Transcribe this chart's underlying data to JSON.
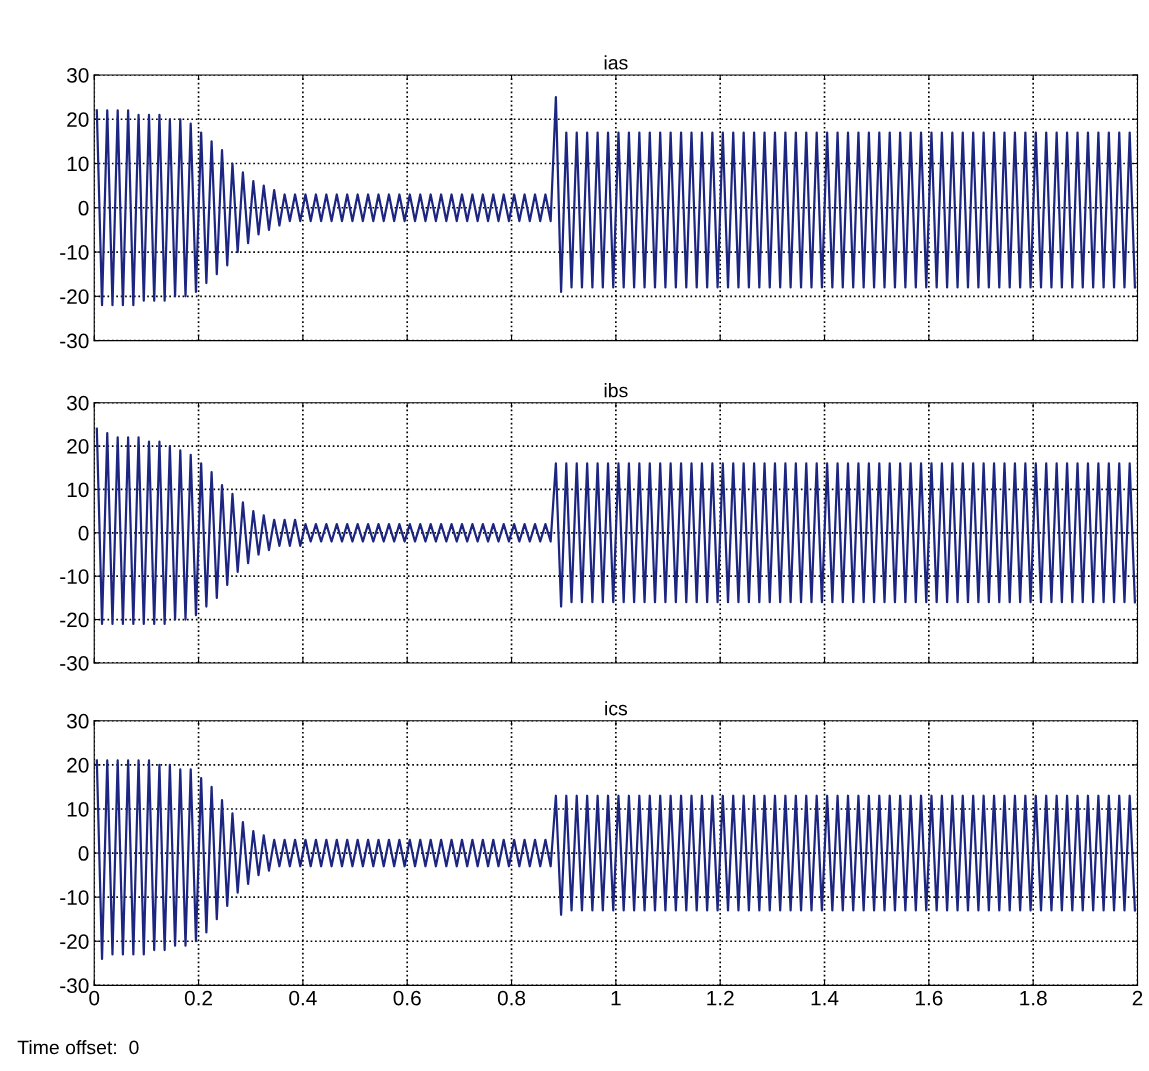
{
  "chart_data": [
    {
      "type": "line",
      "title": "ias",
      "xlim": [
        0,
        2
      ],
      "ylim": [
        -30,
        30
      ],
      "xticks": [
        0,
        0.2,
        0.4,
        0.6,
        0.8,
        1,
        1.2,
        1.4,
        1.6,
        1.8,
        2
      ],
      "yticks": [
        -30,
        -20,
        -10,
        0,
        10,
        20,
        30
      ],
      "grid": true,
      "line_style": "solid",
      "tick_labels": "y",
      "x": [
        0.005,
        0.015,
        0.025,
        0.035,
        0.045,
        0.055,
        0.065,
        0.075,
        0.085,
        0.095,
        0.105,
        0.115,
        0.125,
        0.135,
        0.145,
        0.155,
        0.165,
        0.175,
        0.185,
        0.195,
        0.205,
        0.215,
        0.225,
        0.235,
        0.245,
        0.255,
        0.265,
        0.275,
        0.285,
        0.295,
        0.305,
        0.315,
        0.325,
        0.335,
        0.345,
        0.355,
        0.365,
        0.375,
        0.385,
        0.395,
        0.405,
        0.415,
        0.425,
        0.435,
        0.445,
        0.455,
        0.465,
        0.475,
        0.485,
        0.495,
        0.505,
        0.515,
        0.525,
        0.535,
        0.545,
        0.555,
        0.565,
        0.575,
        0.585,
        0.595,
        0.605,
        0.615,
        0.625,
        0.635,
        0.645,
        0.655,
        0.665,
        0.675,
        0.685,
        0.695,
        0.705,
        0.715,
        0.725,
        0.735,
        0.745,
        0.755,
        0.765,
        0.775,
        0.785,
        0.795,
        0.805,
        0.815,
        0.825,
        0.835,
        0.845,
        0.855,
        0.865,
        0.875,
        0.885,
        0.895,
        0.905,
        0.915,
        0.925,
        0.935,
        0.945,
        0.955,
        0.965,
        0.975,
        0.985,
        0.995,
        1.005,
        1.015,
        1.025,
        1.035,
        1.045,
        1.055,
        1.065,
        1.075,
        1.085,
        1.095,
        1.105,
        1.115,
        1.125,
        1.135,
        1.145,
        1.155,
        1.165,
        1.175,
        1.185,
        1.195,
        1.205,
        1.215,
        1.225,
        1.235,
        1.245,
        1.255,
        1.265,
        1.275,
        1.285,
        1.295,
        1.305,
        1.315,
        1.325,
        1.335,
        1.345,
        1.355,
        1.365,
        1.375,
        1.385,
        1.395,
        1.405,
        1.415,
        1.425,
        1.435,
        1.445,
        1.455,
        1.465,
        1.475,
        1.485,
        1.495,
        1.505,
        1.515,
        1.525,
        1.535,
        1.545,
        1.555,
        1.565,
        1.575,
        1.585,
        1.595,
        1.605,
        1.615,
        1.625,
        1.635,
        1.645,
        1.655,
        1.665,
        1.675,
        1.685,
        1.695,
        1.705,
        1.715,
        1.725,
        1.735,
        1.745,
        1.755,
        1.765,
        1.775,
        1.785,
        1.795,
        1.805,
        1.815,
        1.825,
        1.835,
        1.845,
        1.855,
        1.865,
        1.875,
        1.885,
        1.895,
        1.905,
        1.915,
        1.925,
        1.935,
        1.945,
        1.955,
        1.965,
        1.975,
        1.985,
        1.995
      ],
      "series": [
        {
          "color": "#1c2580",
          "values": [
            22,
            -22,
            22,
            -22,
            22,
            -22,
            22,
            -22,
            21,
            -21,
            21,
            -21,
            21,
            -21,
            20,
            -20,
            20,
            -20,
            19,
            -19,
            17,
            -17,
            15,
            -15,
            13,
            -13,
            10,
            -10,
            8,
            -8,
            6,
            -6,
            5,
            -5,
            4,
            -4,
            3,
            -3,
            3,
            -3,
            3,
            -3,
            3,
            -3,
            3,
            -3,
            3,
            -3,
            3,
            -3,
            3,
            -3,
            3,
            -3,
            3,
            -3,
            3,
            -3,
            3,
            -3,
            3,
            -3,
            3,
            -3,
            3,
            -3,
            3,
            -3,
            3,
            -3,
            3,
            -3,
            3,
            -3,
            3,
            -3,
            3,
            -3,
            3,
            -3,
            3,
            -3,
            3,
            -3,
            3,
            -3,
            3,
            -3,
            25,
            -19,
            17,
            -18,
            17,
            -18,
            17,
            -18,
            17,
            -18,
            17,
            -18,
            17,
            -18,
            17,
            -18,
            17,
            -18,
            17,
            -18,
            17,
            -18,
            17,
            -18,
            17,
            -18,
            17,
            -18,
            17,
            -18,
            17,
            -18,
            17,
            -18,
            17,
            -18,
            17,
            -18,
            17,
            -18,
            17,
            -18,
            17,
            -18,
            17,
            -18,
            17,
            -18,
            17,
            -18,
            17,
            -18,
            17,
            -18,
            17,
            -18,
            17,
            -18,
            17,
            -18,
            17,
            -18,
            17,
            -18,
            17,
            -18,
            17,
            -18,
            17,
            -18,
            17,
            -18,
            17,
            -18,
            17,
            -18,
            17,
            -18,
            17,
            -18,
            17,
            -18,
            17,
            -18,
            17,
            -18,
            17,
            -18,
            17,
            -18,
            17,
            -18,
            17,
            -18,
            17,
            -18,
            17,
            -18,
            17,
            -18,
            17,
            -18,
            17,
            -18,
            17,
            -18,
            17,
            -18,
            17,
            -18,
            17,
            -18
          ]
        }
      ]
    },
    {
      "type": "line",
      "title": "ibs",
      "xlim": [
        0,
        2
      ],
      "ylim": [
        -30,
        30
      ],
      "xticks": [
        0,
        0.2,
        0.4,
        0.6,
        0.8,
        1,
        1.2,
        1.4,
        1.6,
        1.8,
        2
      ],
      "yticks": [
        -30,
        -20,
        -10,
        0,
        10,
        20,
        30
      ],
      "grid": true,
      "line_style": "solid",
      "tick_labels": "y",
      "x": [
        0.005,
        0.015,
        0.025,
        0.035,
        0.045,
        0.055,
        0.065,
        0.075,
        0.085,
        0.095,
        0.105,
        0.115,
        0.125,
        0.135,
        0.145,
        0.155,
        0.165,
        0.175,
        0.185,
        0.195,
        0.205,
        0.215,
        0.225,
        0.235,
        0.245,
        0.255,
        0.265,
        0.275,
        0.285,
        0.295,
        0.305,
        0.315,
        0.325,
        0.335,
        0.345,
        0.355,
        0.365,
        0.375,
        0.385,
        0.395,
        0.405,
        0.415,
        0.425,
        0.435,
        0.445,
        0.455,
        0.465,
        0.475,
        0.485,
        0.495,
        0.505,
        0.515,
        0.525,
        0.535,
        0.545,
        0.555,
        0.565,
        0.575,
        0.585,
        0.595,
        0.605,
        0.615,
        0.625,
        0.635,
        0.645,
        0.655,
        0.665,
        0.675,
        0.685,
        0.695,
        0.705,
        0.715,
        0.725,
        0.735,
        0.745,
        0.755,
        0.765,
        0.775,
        0.785,
        0.795,
        0.805,
        0.815,
        0.825,
        0.835,
        0.845,
        0.855,
        0.865,
        0.875,
        0.885,
        0.895,
        0.905,
        0.915,
        0.925,
        0.935,
        0.945,
        0.955,
        0.965,
        0.975,
        0.985,
        0.995,
        1.005,
        1.015,
        1.025,
        1.035,
        1.045,
        1.055,
        1.065,
        1.075,
        1.085,
        1.095,
        1.105,
        1.115,
        1.125,
        1.135,
        1.145,
        1.155,
        1.165,
        1.175,
        1.185,
        1.195,
        1.205,
        1.215,
        1.225,
        1.235,
        1.245,
        1.255,
        1.265,
        1.275,
        1.285,
        1.295,
        1.305,
        1.315,
        1.325,
        1.335,
        1.345,
        1.355,
        1.365,
        1.375,
        1.385,
        1.395,
        1.405,
        1.415,
        1.425,
        1.435,
        1.445,
        1.455,
        1.465,
        1.475,
        1.485,
        1.495,
        1.505,
        1.515,
        1.525,
        1.535,
        1.545,
        1.555,
        1.565,
        1.575,
        1.585,
        1.595,
        1.605,
        1.615,
        1.625,
        1.635,
        1.645,
        1.655,
        1.665,
        1.675,
        1.685,
        1.695,
        1.705,
        1.715,
        1.725,
        1.735,
        1.745,
        1.755,
        1.765,
        1.775,
        1.785,
        1.795,
        1.805,
        1.815,
        1.825,
        1.835,
        1.845,
        1.855,
        1.865,
        1.875,
        1.885,
        1.895,
        1.905,
        1.915,
        1.925,
        1.935,
        1.945,
        1.955,
        1.965,
        1.975,
        1.985,
        1.995
      ],
      "series": [
        {
          "color": "#1c2580",
          "values": [
            24,
            -21,
            23,
            -21,
            22,
            -21,
            22,
            -21,
            22,
            -21,
            21,
            -21,
            21,
            -21,
            20,
            -20,
            19,
            -20,
            18,
            -19,
            16,
            -17,
            14,
            -15,
            11,
            -12,
            9,
            -9,
            7,
            -7,
            5,
            -5,
            4,
            -4,
            3,
            -3,
            3,
            -3,
            3,
            -3,
            2,
            -2,
            2,
            -2,
            2,
            -2,
            2,
            -2,
            2,
            -2,
            2,
            -2,
            2,
            -2,
            2,
            -2,
            2,
            -2,
            2,
            -2,
            2,
            -2,
            2,
            -2,
            2,
            -2,
            2,
            -2,
            2,
            -2,
            2,
            -2,
            2,
            -2,
            2,
            -2,
            2,
            -2,
            2,
            -2,
            2,
            -2,
            2,
            -2,
            2,
            -2,
            2,
            -2,
            16,
            -17,
            16,
            -16,
            16,
            -16,
            16,
            -16,
            16,
            -16,
            16,
            -16,
            16,
            -16,
            16,
            -16,
            16,
            -16,
            16,
            -16,
            16,
            -16,
            16,
            -16,
            16,
            -16,
            16,
            -16,
            16,
            -16,
            16,
            -16,
            16,
            -16,
            16,
            -16,
            16,
            -16,
            16,
            -16,
            16,
            -16,
            16,
            -16,
            16,
            -16,
            16,
            -16,
            16,
            -16,
            16,
            -16,
            16,
            -16,
            16,
            -16,
            16,
            -16,
            16,
            -16,
            16,
            -16,
            16,
            -16,
            16,
            -16,
            16,
            -16,
            16,
            -16,
            16,
            -16,
            16,
            -16,
            16,
            -16,
            16,
            -16,
            16,
            -16,
            16,
            -16,
            16,
            -16,
            16,
            -16,
            16,
            -16,
            16,
            -16,
            16,
            -16,
            16,
            -16,
            16,
            -16,
            16,
            -16,
            16,
            -16,
            16,
            -16,
            16,
            -16,
            16,
            -16,
            16,
            -16,
            16,
            -16,
            16,
            -16
          ]
        }
      ]
    },
    {
      "type": "line",
      "title": "ics",
      "xlim": [
        0,
        2
      ],
      "ylim": [
        -30,
        30
      ],
      "xticks": [
        0,
        0.2,
        0.4,
        0.6,
        0.8,
        1,
        1.2,
        1.4,
        1.6,
        1.8,
        2
      ],
      "yticks": [
        -30,
        -20,
        -10,
        0,
        10,
        20,
        30
      ],
      "grid": true,
      "line_style": "solid",
      "annotations": [
        "Time offset:  0"
      ],
      "x": [
        0.005,
        0.015,
        0.025,
        0.035,
        0.045,
        0.055,
        0.065,
        0.075,
        0.085,
        0.095,
        0.105,
        0.115,
        0.125,
        0.135,
        0.145,
        0.155,
        0.165,
        0.175,
        0.185,
        0.195,
        0.205,
        0.215,
        0.225,
        0.235,
        0.245,
        0.255,
        0.265,
        0.275,
        0.285,
        0.295,
        0.305,
        0.315,
        0.325,
        0.335,
        0.345,
        0.355,
        0.365,
        0.375,
        0.385,
        0.395,
        0.405,
        0.415,
        0.425,
        0.435,
        0.445,
        0.455,
        0.465,
        0.475,
        0.485,
        0.495,
        0.505,
        0.515,
        0.525,
        0.535,
        0.545,
        0.555,
        0.565,
        0.575,
        0.585,
        0.595,
        0.605,
        0.615,
        0.625,
        0.635,
        0.645,
        0.655,
        0.665,
        0.675,
        0.685,
        0.695,
        0.705,
        0.715,
        0.725,
        0.735,
        0.745,
        0.755,
        0.765,
        0.775,
        0.785,
        0.795,
        0.805,
        0.815,
        0.825,
        0.835,
        0.845,
        0.855,
        0.865,
        0.875,
        0.885,
        0.895,
        0.905,
        0.915,
        0.925,
        0.935,
        0.945,
        0.955,
        0.965,
        0.975,
        0.985,
        0.995,
        1.005,
        1.015,
        1.025,
        1.035,
        1.045,
        1.055,
        1.065,
        1.075,
        1.085,
        1.095,
        1.105,
        1.115,
        1.125,
        1.135,
        1.145,
        1.155,
        1.165,
        1.175,
        1.185,
        1.195,
        1.205,
        1.215,
        1.225,
        1.235,
        1.245,
        1.255,
        1.265,
        1.275,
        1.285,
        1.295,
        1.305,
        1.315,
        1.325,
        1.335,
        1.345,
        1.355,
        1.365,
        1.375,
        1.385,
        1.395,
        1.405,
        1.415,
        1.425,
        1.435,
        1.445,
        1.455,
        1.465,
        1.475,
        1.485,
        1.495,
        1.505,
        1.515,
        1.525,
        1.535,
        1.545,
        1.555,
        1.565,
        1.575,
        1.585,
        1.595,
        1.605,
        1.615,
        1.625,
        1.635,
        1.645,
        1.655,
        1.665,
        1.675,
        1.685,
        1.695,
        1.705,
        1.715,
        1.725,
        1.735,
        1.745,
        1.755,
        1.765,
        1.775,
        1.785,
        1.795,
        1.805,
        1.815,
        1.825,
        1.835,
        1.845,
        1.855,
        1.865,
        1.875,
        1.885,
        1.895,
        1.905,
        1.915,
        1.925,
        1.935,
        1.945,
        1.955,
        1.965,
        1.975,
        1.985,
        1.995
      ],
      "series": [
        {
          "color": "#1c2580",
          "values": [
            21,
            -24,
            21,
            -23,
            21,
            -23,
            21,
            -23,
            21,
            -23,
            21,
            -22,
            20,
            -22,
            20,
            -21,
            19,
            -21,
            19,
            -20,
            17,
            -18,
            15,
            -15,
            12,
            -12,
            9,
            -9,
            7,
            -7,
            5,
            -5,
            4,
            -4,
            3,
            -3,
            3,
            -3,
            3,
            -3,
            3,
            -3,
            3,
            -3,
            3,
            -3,
            3,
            -3,
            3,
            -3,
            3,
            -3,
            3,
            -3,
            3,
            -3,
            3,
            -3,
            3,
            -3,
            3,
            -3,
            3,
            -3,
            3,
            -3,
            3,
            -3,
            3,
            -3,
            3,
            -3,
            3,
            -3,
            3,
            -3,
            3,
            -3,
            3,
            -3,
            3,
            -3,
            3,
            -3,
            3,
            -3,
            3,
            -3,
            13,
            -14,
            13,
            -13,
            13,
            -13,
            13,
            -13,
            13,
            -13,
            13,
            -13,
            13,
            -13,
            13,
            -13,
            13,
            -13,
            13,
            -13,
            13,
            -13,
            13,
            -13,
            13,
            -13,
            13,
            -13,
            13,
            -13,
            13,
            -13,
            13,
            -13,
            13,
            -13,
            13,
            -13,
            13,
            -13,
            13,
            -13,
            13,
            -13,
            13,
            -13,
            13,
            -13,
            13,
            -13,
            13,
            -13,
            13,
            -13,
            13,
            -13,
            13,
            -13,
            13,
            -13,
            13,
            -13,
            13,
            -13,
            13,
            -13,
            13,
            -13,
            13,
            -13,
            13,
            -13,
            13,
            -13,
            13,
            -13,
            13,
            -13,
            13,
            -13,
            13,
            -13,
            13,
            -13,
            13,
            -13,
            13,
            -13,
            13,
            -13,
            13,
            -13,
            13,
            -13,
            13,
            -13,
            13,
            -13,
            13,
            -13,
            13,
            -13,
            13,
            -13,
            13,
            -13,
            13,
            -13,
            13,
            -13,
            13,
            -13
          ]
        }
      ]
    }
  ]
}
